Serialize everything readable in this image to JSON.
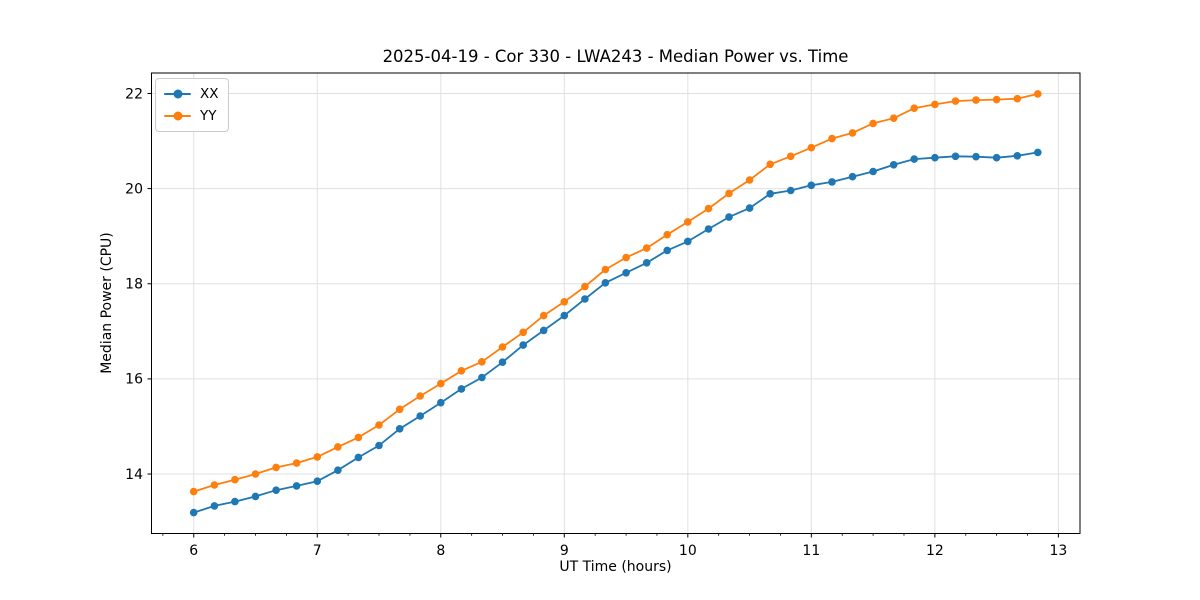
{
  "chart_data": {
    "type": "line",
    "title": "2025-04-19 - Cor 330 - LWA243 - Median Power vs. Time",
    "xlabel": "UT Time (hours)",
    "ylabel": "Median Power (CPU)",
    "xlim": [
      5.658,
      13.175
    ],
    "ylim": [
      12.75,
      22.43
    ],
    "x_ticks": [
      6,
      7,
      8,
      9,
      10,
      11,
      12,
      13
    ],
    "y_ticks": [
      14,
      16,
      18,
      20,
      22
    ],
    "x_minor_tick_step": 0.25,
    "grid": true,
    "legend_position": "upper left",
    "x": [
      6.0,
      6.167,
      6.333,
      6.5,
      6.667,
      6.833,
      7.0,
      7.167,
      7.333,
      7.5,
      7.667,
      7.833,
      8.0,
      8.167,
      8.333,
      8.5,
      8.667,
      8.833,
      9.0,
      9.167,
      9.333,
      9.5,
      9.667,
      9.833,
      10.0,
      10.167,
      10.333,
      10.5,
      10.667,
      10.833,
      11.0,
      11.167,
      11.333,
      11.5,
      11.667,
      11.833,
      12.0,
      12.167,
      12.333,
      12.5,
      12.667,
      12.833
    ],
    "series": [
      {
        "name": "XX",
        "color": "#1f77b4",
        "values": [
          13.19,
          13.33,
          13.42,
          13.53,
          13.66,
          13.75,
          13.85,
          14.08,
          14.35,
          14.6,
          14.95,
          15.22,
          15.5,
          15.79,
          16.03,
          16.35,
          16.71,
          17.02,
          17.33,
          17.68,
          18.02,
          18.23,
          18.44,
          18.7,
          18.89,
          19.15,
          19.4,
          19.59,
          19.89,
          19.96,
          20.07,
          20.14,
          20.25,
          20.36,
          20.5,
          20.62,
          20.65,
          20.68,
          20.67,
          20.65,
          20.69,
          20.76
        ]
      },
      {
        "name": "YY",
        "color": "#ff7f0e",
        "values": [
          13.63,
          13.77,
          13.88,
          14.0,
          14.14,
          14.23,
          14.36,
          14.57,
          14.77,
          15.03,
          15.36,
          15.64,
          15.9,
          16.17,
          16.36,
          16.67,
          16.98,
          17.33,
          17.62,
          17.94,
          18.3,
          18.55,
          18.75,
          19.03,
          19.3,
          19.58,
          19.9,
          20.18,
          20.51,
          20.68,
          20.86,
          21.05,
          21.17,
          21.37,
          21.48,
          21.69,
          21.77,
          21.84,
          21.86,
          21.87,
          21.89,
          21.99
        ]
      }
    ],
    "colors": {
      "grid": "#e0e0e0",
      "spine": "#000000",
      "tick_text": "#000000",
      "background": "#ffffff"
    }
  }
}
